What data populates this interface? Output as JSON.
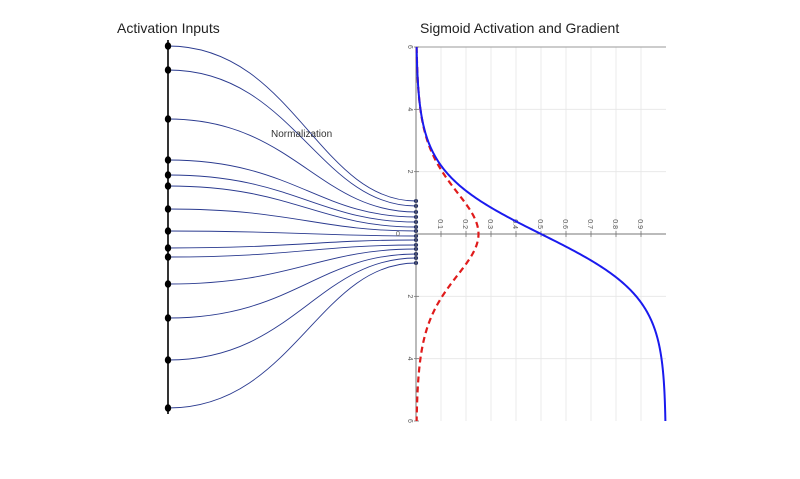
{
  "left_panel": {
    "title": "Activation Inputs",
    "annotation": "Normalization",
    "input_ys": [
      46,
      70,
      119,
      160,
      175,
      186,
      209,
      231,
      248,
      257,
      284,
      318,
      360,
      408
    ],
    "output_ys": [
      201,
      206,
      212,
      217,
      222,
      227,
      231,
      236,
      240,
      245,
      249,
      254,
      258,
      263
    ]
  },
  "right_panel": {
    "title": "Sigmoid Activation and Gradient",
    "x_ticks": [
      "0.1",
      "0.2",
      "0.3",
      "0.4",
      "0.5",
      "0.6",
      "0.7",
      "0.8",
      "0.9"
    ],
    "y_ticks": [
      "6",
      "4",
      "2",
      "0",
      "2",
      "4",
      "6"
    ],
    "x_zero_label": "0",
    "colors": {
      "sigmoid": "#1a1aee",
      "gradient": "#e01b1b"
    }
  },
  "chart_data": {
    "type": "line",
    "title": "Sigmoid Activation and Gradient",
    "orientation": "input on vertical axis (top = -6, bottom = 6), output on horizontal axis",
    "input_range": [
      -6,
      6
    ],
    "output_range": [
      0,
      1
    ],
    "series": [
      {
        "function": "sigmoid",
        "style": "solid",
        "color": "#1a1aee",
        "points": [
          [
            -6,
            0.0025
          ],
          [
            -4,
            0.018
          ],
          [
            -2,
            0.119
          ],
          [
            0,
            0.5
          ],
          [
            2,
            0.881
          ],
          [
            4,
            0.982
          ],
          [
            6,
            0.9975
          ]
        ]
      },
      {
        "function": "sigmoid derivative",
        "style": "dashed",
        "color": "#e01b1b",
        "points": [
          [
            -6,
            0.0025
          ],
          [
            -4,
            0.018
          ],
          [
            -2,
            0.105
          ],
          [
            0,
            0.25
          ],
          [
            2,
            0.105
          ],
          [
            4,
            0.018
          ],
          [
            6,
            0.0025
          ]
        ]
      }
    ],
    "grid": true
  }
}
